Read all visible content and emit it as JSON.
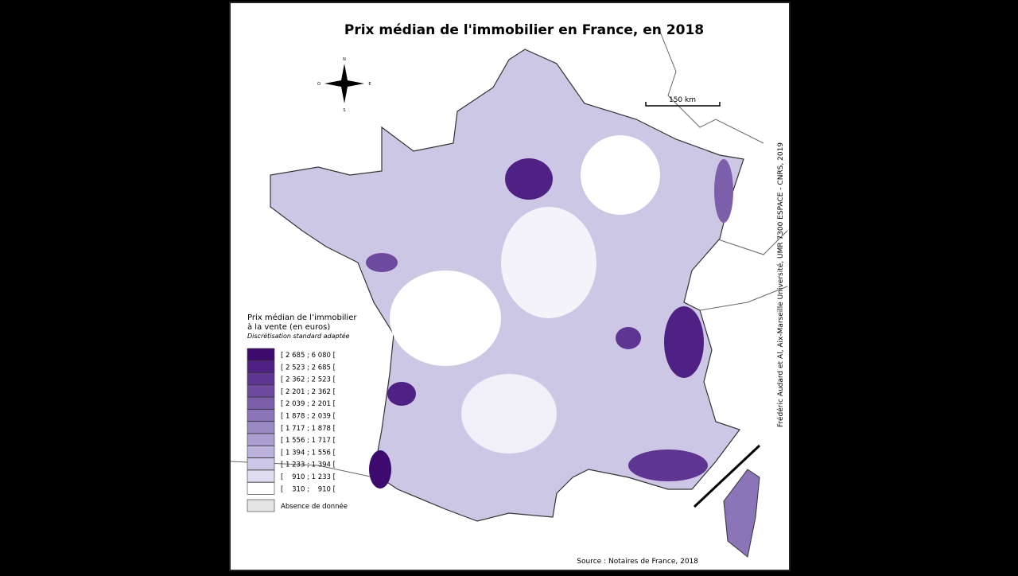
{
  "title": "Prix médian de l'immobilier en France, en 2018",
  "legend": {
    "title_lines": [
      "Prix médian de l’immobilier",
      "à la vente (en euros)"
    ],
    "subtitle": "Discrétisation standard adaptée",
    "classes": [
      {
        "label": "[ 2 685 ; 6 080 [",
        "color": "#3d0a6e"
      },
      {
        "label": "[ 2 523 ; 2 685 [",
        "color": "#4f2185"
      },
      {
        "label": "[ 2 362 ; 2 523 [",
        "color": "#5e3592"
      },
      {
        "label": "[ 2 201 ; 2 362 [",
        "color": "#6d4a9e"
      },
      {
        "label": "[ 2 039 ; 2 201 [",
        "color": "#7c5fab"
      },
      {
        "label": "[ 1 878 ; 2 039 [",
        "color": "#8b74b8"
      },
      {
        "label": "[ 1 717 ; 1 878 [",
        "color": "#9b89c4"
      },
      {
        "label": "[ 1 556 ; 1 717 [",
        "color": "#ab9ed0"
      },
      {
        "label": "[ 1 394 ; 1 556 [",
        "color": "#bcb3dc"
      },
      {
        "label": "[ 1 233 ; 1 394 [",
        "color": "#cdc7e7"
      },
      {
        "label": "[    910 ; 1 233 [",
        "color": "#e0ddf1"
      },
      {
        "label": "[    310 ;    910 [",
        "color": "#ffffff"
      }
    ],
    "missing": {
      "label": "Absence de donnée",
      "color": "#e4e4e4"
    }
  },
  "compass": {
    "n": "N",
    "s": "S",
    "e": "E",
    "o": "O"
  },
  "scale": "150 km",
  "credits": "Frédéric Audard et Al, Aix-Marseille Université, UMR 7300 ESPACE - CNRS, 2019",
  "source": "Source : Notaires de France, 2018"
}
